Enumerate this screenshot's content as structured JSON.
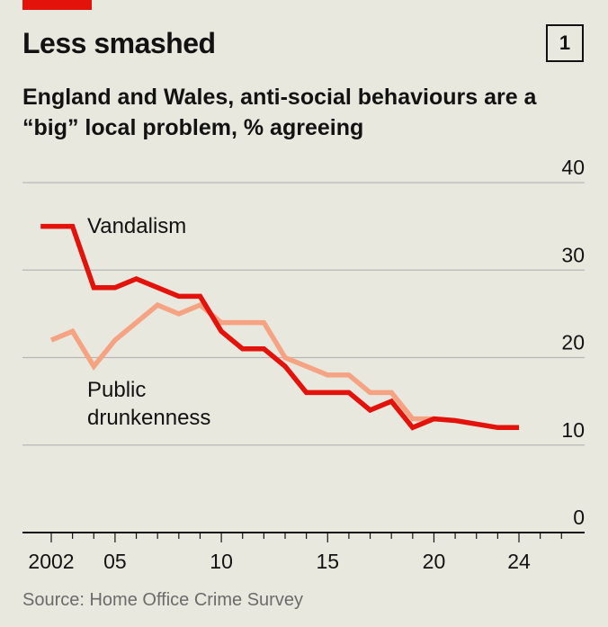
{
  "header": {
    "title": "Less smashed",
    "chart_number": "1",
    "subtitle": "England and Wales, anti-social behaviours are a “big” local problem, % agreeing"
  },
  "footer": {
    "source": "Source: Home Office Crime Survey"
  },
  "chart_data": {
    "type": "line",
    "title": "Less smashed",
    "subtitle": "England and Wales, anti-social behaviours are a “big” local problem, % agreeing",
    "xlabel": "",
    "ylabel": "",
    "xlim": [
      2002,
      2026
    ],
    "ylim": [
      0,
      40
    ],
    "y_ticks": [
      {
        "value": 0,
        "label": "0"
      },
      {
        "value": 10,
        "label": "10"
      },
      {
        "value": 20,
        "label": "20"
      },
      {
        "value": 30,
        "label": "30"
      },
      {
        "value": 40,
        "label": "40"
      }
    ],
    "x_ticks": [
      {
        "value": 2002,
        "label": "2002"
      },
      {
        "value": 2005,
        "label": "05"
      },
      {
        "value": 2010,
        "label": "10"
      },
      {
        "value": 2015,
        "label": "15"
      },
      {
        "value": 2020,
        "label": "20"
      },
      {
        "value": 2024,
        "label": "24"
      }
    ],
    "grid": true,
    "series": [
      {
        "name": "Public drunkenness",
        "label": "Public\ndrunkenness",
        "color": "#f5a383",
        "points": [
          [
            2002.0,
            22
          ],
          [
            2003.0,
            23
          ],
          [
            2004.0,
            19
          ],
          [
            2005.0,
            22
          ],
          [
            2006.0,
            24
          ],
          [
            2007.0,
            26
          ],
          [
            2008.0,
            25
          ],
          [
            2009.0,
            26
          ],
          [
            2010.0,
            24
          ],
          [
            2011.0,
            24
          ],
          [
            2012.0,
            24
          ],
          [
            2013.0,
            20
          ],
          [
            2014.0,
            19
          ],
          [
            2015.0,
            18
          ],
          [
            2016.0,
            18
          ],
          [
            2017.0,
            16
          ],
          [
            2018.0,
            16
          ],
          [
            2019.0,
            13
          ],
          [
            2020.0,
            13
          ]
        ]
      },
      {
        "name": "Vandalism",
        "label": "Vandalism",
        "color": "#e3120b",
        "points": [
          [
            2001.5,
            35
          ],
          [
            2003.0,
            35
          ],
          [
            2004.0,
            28
          ],
          [
            2005.0,
            28
          ],
          [
            2006.0,
            29
          ],
          [
            2007.0,
            28
          ],
          [
            2008.0,
            27
          ],
          [
            2009.0,
            27
          ],
          [
            2010.0,
            23
          ],
          [
            2011.0,
            21
          ],
          [
            2012.0,
            21
          ],
          [
            2013.0,
            19
          ],
          [
            2014.0,
            16
          ],
          [
            2015.0,
            16
          ],
          [
            2016.0,
            16
          ],
          [
            2017.0,
            14
          ],
          [
            2018.0,
            15
          ],
          [
            2019.0,
            12
          ],
          [
            2020.0,
            13
          ],
          [
            2021.0,
            12.8
          ],
          [
            2023.0,
            12
          ],
          [
            2024.0,
            12
          ]
        ]
      }
    ]
  }
}
